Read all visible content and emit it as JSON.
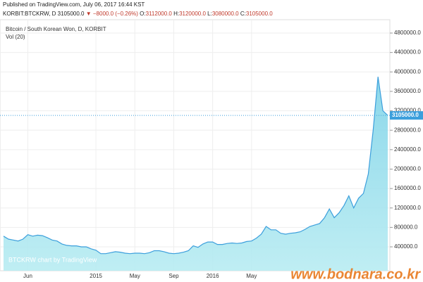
{
  "header": {
    "published": "Published on TradingView.com, July 06, 2017 16:44 KST",
    "symbol": "KORBIT:BTCKRW, D",
    "price": "3105000.0",
    "arrow": "▼",
    "change": "−8000.0 (−0.26%)",
    "ohlc": [
      {
        "label": "O:",
        "value": "3112000.0"
      },
      {
        "label": "H:",
        "value": "3120000.0"
      },
      {
        "label": "L:",
        "value": "3080000.0"
      },
      {
        "label": "C:",
        "value": "3105000.0"
      }
    ]
  },
  "chart_data": {
    "type": "area",
    "indicator": "Vol (20)",
    "credit": "BTCKRW chart by TradingView",
    "watermark": "www.bodnara.co.kr",
    "categories": [
      null,
      null,
      null,
      null,
      null,
      "Jun",
      null,
      null,
      null,
      null,
      null,
      null,
      null,
      null,
      null,
      null,
      null,
      null,
      null,
      "2015",
      null,
      null,
      null,
      null,
      null,
      null,
      null,
      "May",
      null,
      null,
      null,
      null,
      null,
      null,
      null,
      "Sep",
      null,
      null,
      null,
      null,
      null,
      null,
      null,
      "2016",
      null,
      null,
      null,
      null,
      null,
      null,
      null,
      "May",
      null,
      null,
      null,
      null,
      null,
      null,
      null,
      null,
      null,
      null,
      null,
      null,
      null,
      null,
      null,
      null,
      null,
      null,
      null,
      null,
      null,
      null,
      null,
      null,
      null,
      null,
      null,
      null
    ],
    "series": [
      {
        "name": "Bitcoin / South Korean Won, D, KORBIT",
        "color": "#3c9fdc",
        "values": [
          620000,
          560000,
          540000,
          520000,
          560000,
          650000,
          620000,
          640000,
          630000,
          590000,
          540000,
          520000,
          460000,
          430000,
          420000,
          420000,
          400000,
          400000,
          360000,
          330000,
          260000,
          260000,
          280000,
          300000,
          290000,
          270000,
          260000,
          270000,
          270000,
          260000,
          280000,
          320000,
          320000,
          300000,
          270000,
          260000,
          270000,
          290000,
          320000,
          420000,
          390000,
          460000,
          500000,
          500000,
          450000,
          450000,
          470000,
          480000,
          470000,
          480000,
          510000,
          520000,
          580000,
          660000,
          820000,
          750000,
          750000,
          680000,
          660000,
          680000,
          690000,
          710000,
          760000,
          820000,
          850000,
          880000,
          1000000,
          1180000,
          1000000,
          1100000,
          1250000,
          1450000,
          1200000,
          1400000,
          1500000,
          1900000,
          2800000,
          3900000,
          3200000,
          3105000
        ]
      }
    ],
    "last_price": {
      "value": 3105000,
      "label": "3105000.0"
    },
    "ylim": [
      -92000,
      5075000
    ],
    "yticks": [
      {
        "value": 400000,
        "label": "400000.0"
      },
      {
        "value": 800000,
        "label": "800000.0"
      },
      {
        "value": 1200000,
        "label": "1200000.0"
      },
      {
        "value": 1600000,
        "label": "1600000.0"
      },
      {
        "value": 2000000,
        "label": "2000000.0"
      },
      {
        "value": 2400000,
        "label": "2400000.0"
      },
      {
        "value": 2800000,
        "label": "2800000.0"
      },
      {
        "value": 3200000,
        "label": "3200000.0"
      },
      {
        "value": 3600000,
        "label": "3600000.0"
      },
      {
        "value": 4000000,
        "label": "4000000.0"
      },
      {
        "value": 4400000,
        "label": "4400000.0"
      },
      {
        "value": 4800000,
        "label": "4800000.0"
      }
    ],
    "grid": true
  }
}
